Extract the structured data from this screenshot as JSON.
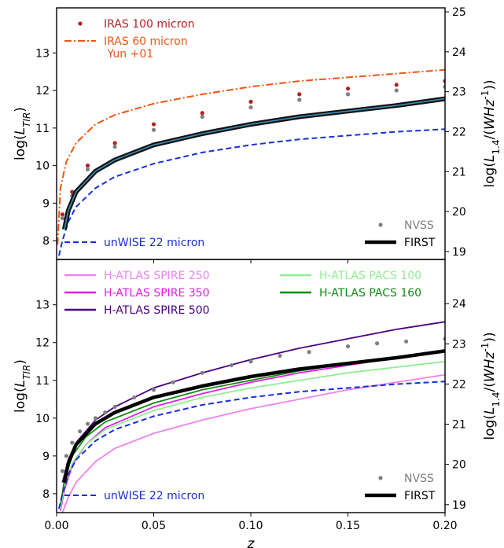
{
  "chart_data": [
    {
      "type": "line",
      "panel": "top",
      "xlabel": "",
      "ylabel": "log(L_TIR)",
      "y2label": "log(L_1.4/(WHz^-1))",
      "xlim": [
        0,
        0.2
      ],
      "ylim": [
        7.5,
        14.2
      ],
      "y2lim": [
        18.8,
        25.1
      ],
      "yticks": [
        "8",
        "9",
        "10",
        "11",
        "12",
        "13"
      ],
      "y2ticks": [
        "19",
        "20",
        "21",
        "22",
        "23",
        "24",
        "25"
      ],
      "grid": false,
      "legends": [
        {
          "placement": "top-left",
          "entries": [
            "IRAS 100 micron",
            "IRAS 60 micron\n Yun +01"
          ]
        },
        {
          "placement": "bottom-left",
          "entries": [
            "unWISE 22 micron"
          ]
        },
        {
          "placement": "bottom-right",
          "entries": [
            "NVSS",
            "FIRST"
          ]
        }
      ],
      "series": [
        {
          "name": "IRAS 100 micron",
          "style": "dots",
          "color": "#b22222",
          "x": [
            0.003,
            0.008,
            0.016,
            0.03,
            0.05,
            0.075,
            0.1,
            0.125,
            0.15,
            0.175,
            0.2
          ],
          "y": [
            8.7,
            9.3,
            10.0,
            10.6,
            11.1,
            11.4,
            11.7,
            11.9,
            12.05,
            12.15,
            12.25
          ]
        },
        {
          "name": "IRAS 60 micron\n Yun +01",
          "style": "dashdot",
          "color": "#ee5511",
          "x": [
            0.0005,
            0.002,
            0.005,
            0.01,
            0.02,
            0.03,
            0.05,
            0.075,
            0.1,
            0.125,
            0.15,
            0.175,
            0.2
          ],
          "y": [
            7.9,
            9.4,
            10.1,
            10.6,
            11.1,
            11.35,
            11.65,
            11.9,
            12.1,
            12.25,
            12.35,
            12.45,
            12.55
          ]
        },
        {
          "name": "unWISE 22 micron",
          "style": "dashed",
          "color": "#1a2fd4",
          "x": [
            0.0012,
            0.003,
            0.006,
            0.01,
            0.02,
            0.03,
            0.05,
            0.075,
            0.1,
            0.125,
            0.15,
            0.175,
            0.2
          ],
          "y": [
            7.6,
            8.0,
            8.5,
            8.9,
            9.4,
            9.7,
            10.05,
            10.35,
            10.55,
            10.7,
            10.8,
            10.9,
            10.97
          ]
        },
        {
          "name": "NVSS",
          "style": "dots",
          "color": "#808080",
          "x": [
            0.003,
            0.008,
            0.016,
            0.03,
            0.05,
            0.075,
            0.1,
            0.125,
            0.15,
            0.175,
            0.2
          ],
          "y": [
            8.6,
            9.2,
            9.9,
            10.5,
            10.95,
            11.3,
            11.55,
            11.75,
            11.9,
            12.0,
            12.1
          ]
        },
        {
          "name": "FIRST",
          "style": "solid-band",
          "color": "#0b0b0b",
          "x": [
            0.004,
            0.006,
            0.01,
            0.02,
            0.03,
            0.05,
            0.075,
            0.1,
            0.125,
            0.15,
            0.175,
            0.2
          ],
          "y": [
            8.3,
            8.8,
            9.3,
            9.85,
            10.15,
            10.55,
            10.85,
            11.1,
            11.3,
            11.45,
            11.6,
            11.78
          ]
        }
      ]
    },
    {
      "type": "line",
      "panel": "bottom",
      "xlabel": "z",
      "ylabel": "log(L_TIR)",
      "y2label": "log(L_1.4/(WHz^-1))",
      "xlim": [
        0,
        0.2
      ],
      "ylim": [
        7.5,
        14.2
      ],
      "y2lim": [
        18.8,
        25.1
      ],
      "xticks": [
        "0.00",
        "0.05",
        "0.10",
        "0.15",
        "0.20"
      ],
      "yticks": [
        "8",
        "9",
        "10",
        "11",
        "12",
        "13"
      ],
      "y2ticks": [
        "19",
        "20",
        "21",
        "22",
        "23",
        "24"
      ],
      "grid": false,
      "legends": [
        {
          "placement": "top-left",
          "entries": [
            "H-ATLAS SPIRE 250",
            "H-ATLAS SPIRE 350",
            "H-ATLAS SPIRE 500"
          ]
        },
        {
          "placement": "top-right",
          "entries": [
            "H-ATLAS PACS 100",
            "H-ATLAS PACS 160"
          ]
        },
        {
          "placement": "bottom-left",
          "entries": [
            "unWISE 22 micron"
          ]
        },
        {
          "placement": "bottom-right",
          "entries": [
            "NVSS",
            "FIRST"
          ]
        }
      ],
      "series": [
        {
          "name": "H-ATLAS SPIRE 250",
          "style": "solid",
          "color": "#ee82ee",
          "x": [
            0.003,
            0.006,
            0.01,
            0.02,
            0.03,
            0.05,
            0.075,
            0.1,
            0.125,
            0.15,
            0.175,
            0.2
          ],
          "y": [
            7.5,
            7.9,
            8.3,
            8.85,
            9.2,
            9.6,
            9.95,
            10.25,
            10.5,
            10.75,
            10.95,
            11.15
          ]
        },
        {
          "name": "H-ATLAS SPIRE 350",
          "style": "solid",
          "color": "#e21fe2",
          "x": [
            0.002,
            0.004,
            0.008,
            0.015,
            0.025,
            0.05,
            0.075,
            0.1,
            0.125,
            0.15,
            0.175,
            0.2
          ],
          "y": [
            7.55,
            8.1,
            8.75,
            9.3,
            9.75,
            10.3,
            10.65,
            10.95,
            11.2,
            11.4,
            11.6,
            11.75
          ]
        },
        {
          "name": "H-ATLAS SPIRE 500",
          "style": "solid",
          "color": "#4b0082",
          "x": [
            0.003,
            0.006,
            0.01,
            0.02,
            0.03,
            0.05,
            0.075,
            0.1,
            0.125,
            0.15,
            0.175,
            0.2
          ],
          "y": [
            8.3,
            8.9,
            9.35,
            9.95,
            10.3,
            10.8,
            11.2,
            11.55,
            11.85,
            12.1,
            12.35,
            12.55
          ]
        },
        {
          "name": "H-ATLAS PACS 100",
          "style": "solid",
          "color": "#90ee90",
          "x": [
            0.002,
            0.004,
            0.008,
            0.015,
            0.025,
            0.05,
            0.075,
            0.1,
            0.125,
            0.15,
            0.175,
            0.2
          ],
          "y": [
            7.6,
            8.2,
            8.8,
            9.3,
            9.7,
            10.2,
            10.55,
            10.8,
            11.0,
            11.2,
            11.35,
            11.5
          ]
        },
        {
          "name": "H-ATLAS PACS 160",
          "style": "solid",
          "color": "#138a13",
          "x": [
            0.002,
            0.004,
            0.008,
            0.015,
            0.025,
            0.05,
            0.075,
            0.1,
            0.125,
            0.15,
            0.175,
            0.2
          ],
          "y": [
            7.7,
            8.35,
            9.0,
            9.5,
            9.9,
            10.4,
            10.75,
            11.0,
            11.25,
            11.45,
            11.6,
            11.75
          ]
        },
        {
          "name": "unWISE 22 micron",
          "style": "dashed",
          "color": "#1a2fd4",
          "x": [
            0.0012,
            0.003,
            0.006,
            0.01,
            0.02,
            0.03,
            0.05,
            0.075,
            0.1,
            0.125,
            0.15,
            0.175,
            0.2
          ],
          "y": [
            7.6,
            8.0,
            8.5,
            8.9,
            9.4,
            9.7,
            10.05,
            10.35,
            10.55,
            10.7,
            10.8,
            10.9,
            10.97
          ]
        },
        {
          "name": "NVSS",
          "style": "dots",
          "color": "#808080",
          "x": [
            0.003,
            0.005,
            0.008,
            0.012,
            0.016,
            0.02,
            0.025,
            0.03,
            0.04,
            0.05,
            0.06,
            0.075,
            0.09,
            0.1,
            0.115,
            0.13,
            0.15,
            0.165,
            0.18,
            0.2
          ],
          "y": [
            8.6,
            9.0,
            9.35,
            9.65,
            9.85,
            10.0,
            10.15,
            10.3,
            10.55,
            10.75,
            10.95,
            11.2,
            11.4,
            11.5,
            11.65,
            11.75,
            11.9,
            11.98,
            12.03,
            12.1
          ]
        },
        {
          "name": "FIRST",
          "style": "thick",
          "color": "#000000",
          "x": [
            0.004,
            0.006,
            0.01,
            0.02,
            0.03,
            0.05,
            0.075,
            0.1,
            0.125,
            0.15,
            0.175,
            0.2
          ],
          "y": [
            8.3,
            8.8,
            9.3,
            9.85,
            10.15,
            10.55,
            10.85,
            11.1,
            11.3,
            11.45,
            11.6,
            11.78
          ]
        }
      ]
    }
  ]
}
